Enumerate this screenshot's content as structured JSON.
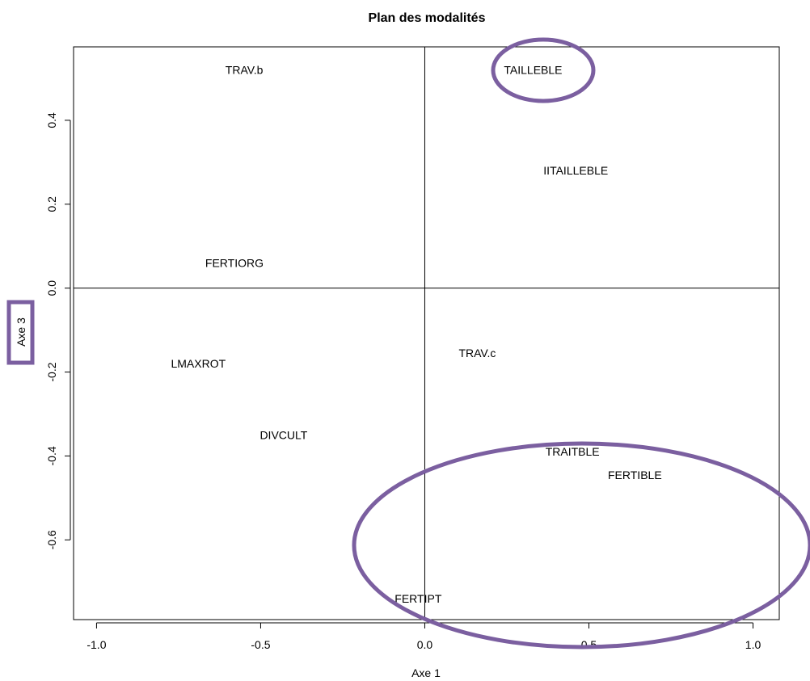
{
  "chart_data": {
    "type": "scatter",
    "title": "Plan des modalités",
    "xlabel": "Axe 1",
    "ylabel": "Axe 3",
    "xlim": [
      -1.07,
      1.08
    ],
    "ylim": [
      -0.79,
      0.575
    ],
    "xticks": [
      -1.0,
      -0.5,
      0.0,
      0.5,
      1.0
    ],
    "xtick_labels": [
      "-1.0",
      "-0.5",
      "0.0",
      "0.5",
      "1.0"
    ],
    "yticks": [
      -0.6,
      -0.4,
      -0.2,
      0.0,
      0.2,
      0.4
    ],
    "ytick_labels": [
      "-0.6",
      "-0.4",
      "-0.2",
      "0.0",
      "0.2",
      "0.4"
    ],
    "reference_lines": {
      "x": 0,
      "y": 0
    },
    "grid": false,
    "points": [
      {
        "label": "TRAV.b",
        "x": -0.55,
        "y": 0.52
      },
      {
        "label": "TAILLEBLE",
        "x": 0.33,
        "y": 0.52
      },
      {
        "label": "IITAILLEBLE",
        "x": 0.46,
        "y": 0.28
      },
      {
        "label": "FERTIORG",
        "x": -0.58,
        "y": 0.06
      },
      {
        "label": "LMAXROT",
        "x": -0.69,
        "y": -0.18
      },
      {
        "label": "TRAV.c",
        "x": 0.16,
        "y": -0.155
      },
      {
        "label": "DIVCULT",
        "x": -0.43,
        "y": -0.35
      },
      {
        "label": "TRAITBLE",
        "x": 0.45,
        "y": -0.39
      },
      {
        "label": "FERTIBLE",
        "x": 0.64,
        "y": -0.445
      },
      {
        "label": "FERTIPT",
        "x": -0.02,
        "y": -0.74
      }
    ],
    "highlights": [
      {
        "shape": "ellipse",
        "target": "TAILLEBLE",
        "color": "#7b5fa0"
      },
      {
        "shape": "ellipse",
        "target": [
          "TRAITBLE",
          "FERTIBLE",
          "FERTIPT"
        ],
        "color": "#7b5fa0"
      },
      {
        "shape": "rectangle",
        "target": "ylabel",
        "color": "#7b5fa0"
      }
    ],
    "annotation_color": "#7b5fa0"
  }
}
